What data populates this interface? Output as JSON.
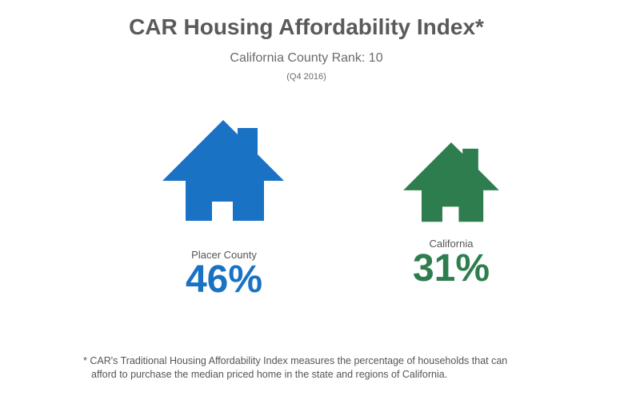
{
  "title": "CAR Housing Affordability Index*",
  "subtitle": "California County Rank: 10",
  "period": "(Q4 2016)",
  "chart_data": {
    "type": "bar",
    "title": "CAR Housing Affordability Index*",
    "subtitle": "California County Rank: 10",
    "period": "(Q4 2016)",
    "categories": [
      "Placer County",
      "California"
    ],
    "values": [
      46,
      31
    ],
    "value_labels": [
      "46%",
      "31%"
    ],
    "unit": "%",
    "colors": [
      "#1a72c4",
      "#2e7d4f"
    ]
  },
  "footnote": {
    "line1": "* CAR's Traditional Housing Affordability Index measures the percentage of households that can",
    "line2": "afford to purchase the median priced home in the state and regions of California."
  }
}
